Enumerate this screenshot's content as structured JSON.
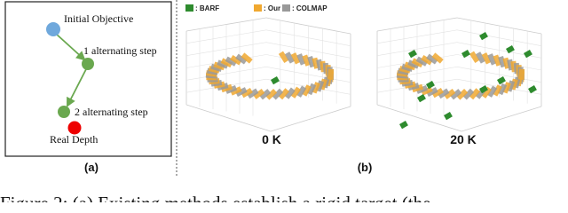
{
  "panel_a": {
    "nodes": [
      {
        "label": "Initial Objective"
      },
      {
        "label": "1 alternating step"
      },
      {
        "label": "2 alternating step"
      },
      {
        "label": "Real Depth"
      }
    ],
    "caption": "(a)"
  },
  "panel_b": {
    "legend": [
      ": BARF",
      ": Our",
      ": COLMAP"
    ],
    "plots": [
      {
        "label": "0 K"
      },
      {
        "label": "20 K"
      }
    ],
    "caption": "(b)"
  },
  "figure_caption": "Figure 2: (a) Existing methods establish a rigid target (the"
}
